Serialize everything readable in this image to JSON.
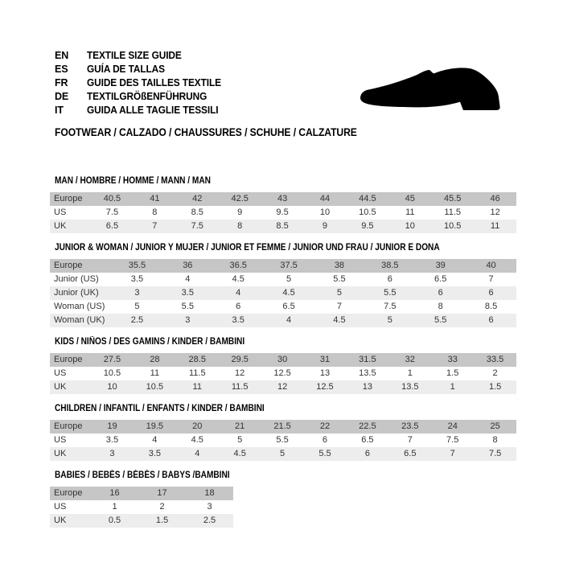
{
  "colors": {
    "page_bg": "#ffffff",
    "header_row_bg": "#c6c6c6",
    "alt_row_bg": "#ededed",
    "table_text": "#333333",
    "shoe_icon": "#000000"
  },
  "header": {
    "languages": [
      {
        "code": "EN",
        "label": "TEXTILE SIZE GUIDE"
      },
      {
        "code": "ES",
        "label": "GUÍA DE TALLAS"
      },
      {
        "code": "FR",
        "label": "GUIDE DES TAILLES TEXTILE"
      },
      {
        "code": "DE",
        "label": "TEXTILGRÖßENFÜHRUNG"
      },
      {
        "code": "IT",
        "label": "GUIDA ALLE TAGLIE TESSILI"
      }
    ],
    "category_line": "FOOTWEAR / CALZADO / CHAUSSURES / SCHUHE / CALZATURE",
    "shoe_icon": "dress-shoe-silhouette"
  },
  "tables": [
    {
      "id": "man",
      "title": "MAN / HOMBRE / HOMME / MANN / MAN",
      "rows": [
        {
          "label": "Europe",
          "values": [
            "40.5",
            "41",
            "42",
            "42.5",
            "43",
            "44",
            "44.5",
            "45",
            "45.5",
            "46"
          ]
        },
        {
          "label": "US",
          "values": [
            "7.5",
            "8",
            "8.5",
            "9",
            "9.5",
            "10",
            "10.5",
            "11",
            "11.5",
            "12"
          ]
        },
        {
          "label": "UK",
          "values": [
            "6.5",
            "7",
            "7.5",
            "8",
            "8.5",
            "9",
            "9.5",
            "10",
            "10.5",
            "11"
          ]
        }
      ]
    },
    {
      "id": "junior-woman",
      "title": "JUNIOR & WOMAN / JUNIOR Y MUJER / JUNIOR ET FEMME / JUNIOR UND FRAU / JUNIOR E DONA",
      "rows": [
        {
          "label": "Europe",
          "values": [
            "35.5",
            "36",
            "36.5",
            "37.5",
            "38",
            "38.5",
            "39",
            "40"
          ]
        },
        {
          "label": "Junior (US)",
          "values": [
            "3.5",
            "4",
            "4.5",
            "5",
            "5.5",
            "6",
            "6.5",
            "7"
          ]
        },
        {
          "label": "Junior (UK)",
          "values": [
            "3",
            "3.5",
            "4",
            "4.5",
            "5",
            "5.5",
            "6",
            "6"
          ]
        },
        {
          "label": "Woman (US)",
          "values": [
            "5",
            "5.5",
            "6",
            "6.5",
            "7",
            "7.5",
            "8",
            "8.5"
          ]
        },
        {
          "label": "Woman (UK)",
          "values": [
            "2.5",
            "3",
            "3.5",
            "4",
            "4.5",
            "5",
            "5.5",
            "6"
          ]
        }
      ]
    },
    {
      "id": "kids",
      "title": "KIDS / NIÑOS / DES GAMINS / KINDER / BAMBINI",
      "rows": [
        {
          "label": "Europe",
          "values": [
            "27.5",
            "28",
            "28.5",
            "29.5",
            "30",
            "31",
            "31.5",
            "32",
            "33",
            "33.5"
          ]
        },
        {
          "label": "US",
          "values": [
            "10.5",
            "11",
            "11.5",
            "12",
            "12.5",
            "13",
            "13.5",
            "1",
            "1.5",
            "2"
          ]
        },
        {
          "label": "UK",
          "values": [
            "10",
            "10.5",
            "11",
            "11.5",
            "12",
            "12.5",
            "13",
            "13.5",
            "1",
            "1.5"
          ]
        }
      ]
    },
    {
      "id": "children",
      "title": "CHILDREN / INFANTIL / ENFANTS / KINDER / BAMBINI",
      "rows": [
        {
          "label": "Europe",
          "values": [
            "19",
            "19.5",
            "20",
            "21",
            "21.5",
            "22",
            "22.5",
            "23.5",
            "24",
            "25"
          ]
        },
        {
          "label": "US",
          "values": [
            "3.5",
            "4",
            "4.5",
            "5",
            "5.5",
            "6",
            "6.5",
            "7",
            "7.5",
            "8"
          ]
        },
        {
          "label": "UK",
          "values": [
            "3",
            "3.5",
            "4",
            "4.5",
            "5",
            "5.5",
            "6",
            "6.5",
            "7",
            "7.5"
          ]
        }
      ]
    },
    {
      "id": "babies",
      "title": "BABIES / BEBÉS / BÉBÉS / BABYS /BAMBINI",
      "rows": [
        {
          "label": "Europe",
          "values": [
            "16",
            "17",
            "18"
          ]
        },
        {
          "label": "US",
          "values": [
            "1",
            "2",
            "3"
          ]
        },
        {
          "label": "UK",
          "values": [
            "0.5",
            "1.5",
            "2.5"
          ]
        }
      ]
    }
  ]
}
